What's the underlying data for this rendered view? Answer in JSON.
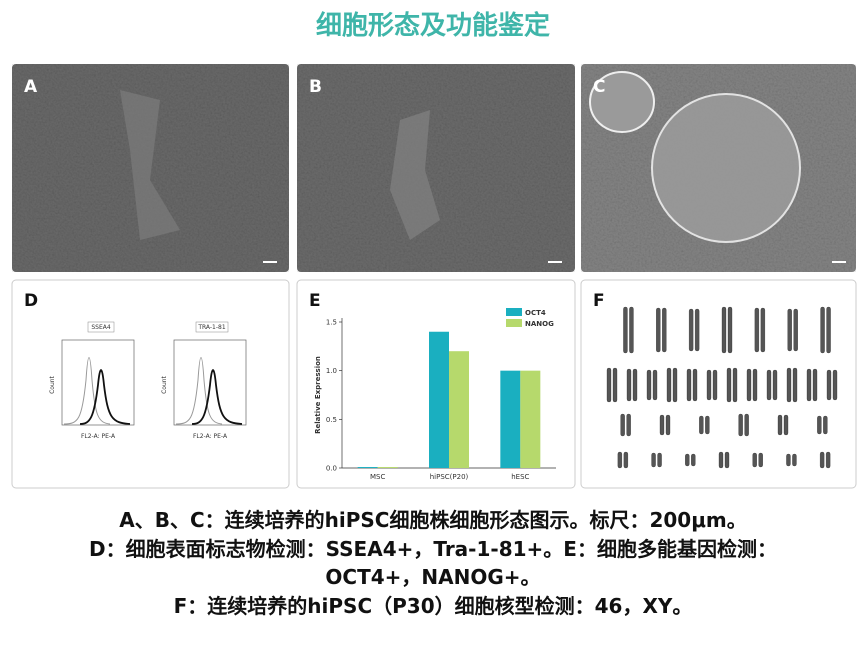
{
  "title": "细胞形态及功能鉴定",
  "panels": [
    "A",
    "B",
    "C",
    "D",
    "E",
    "F"
  ],
  "flow": {
    "markers": [
      "SSEA4",
      "TRA-1-81"
    ],
    "x_label": "FL2-A: PE-A",
    "y_label": "Count"
  },
  "chart_data": {
    "type": "bar",
    "y_label": "Relative Expression",
    "categories": [
      "MSC",
      "hiPSC(P20)",
      "hESC"
    ],
    "series": [
      {
        "name": "OCT4",
        "color": "#1aafc0",
        "values": [
          0.01,
          1.4,
          1.0
        ]
      },
      {
        "name": "NANOG",
        "color": "#b6d96c",
        "values": [
          0.01,
          1.2,
          1.0
        ]
      }
    ],
    "ylim": [
      0,
      1.5
    ],
    "yticks": [
      {
        "value": 0,
        "label": "0.0"
      },
      {
        "value": 0.5,
        "label": "0.5"
      },
      {
        "value": 1,
        "label": "1.0"
      },
      {
        "value": 1.5,
        "label": "1.5"
      }
    ],
    "legend": "top-right"
  },
  "caption": [
    "A、B、C：连续培养的hiPSC细胞株细胞形态图示。标尺：200μm。",
    "D：细胞表面标志物检测：SSEA4+，Tra-1-81+。E：细胞多能基因检测：",
    "OCT4+，NANOG+。",
    "F：连续培养的hiPSC（P30）细胞核型检测：46，XY。"
  ]
}
